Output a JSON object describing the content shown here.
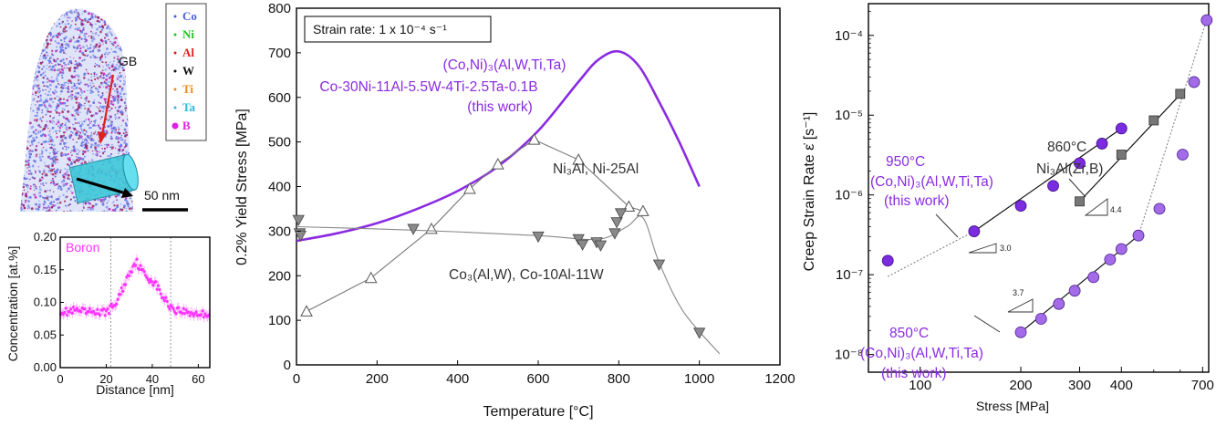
{
  "apt": {
    "legend": [
      {
        "label": "Co",
        "color": "#4a5fd8"
      },
      {
        "label": "Ni",
        "color": "#22c422"
      },
      {
        "label": "Al",
        "color": "#e02020"
      },
      {
        "label": "W",
        "color": "#111111"
      },
      {
        "label": "Ti",
        "color": "#f08a18"
      },
      {
        "label": "Ta",
        "color": "#2fb8e0"
      },
      {
        "label": "B",
        "color": "#e020e0"
      }
    ],
    "gb_label": "GB",
    "scale_label": "50 nm"
  },
  "chart_data": [
    {
      "type": "line",
      "xlabel": "Distance [nm]",
      "ylabel": "Concentration [at.%]",
      "xlim": [
        0,
        65
      ],
      "ylim": [
        0,
        0.2
      ],
      "xticks": [
        0,
        20,
        40,
        60
      ],
      "yticks": [
        0,
        0.05,
        0.1,
        0.15,
        0.2
      ],
      "ytick_labels": [
        "0.00",
        "0.05",
        "0.10",
        "0.15",
        "0.20"
      ],
      "vlines": [
        22,
        48
      ],
      "series": [
        {
          "name": "Boron",
          "color": "#ff33ff",
          "x": [
            0,
            3,
            6,
            9,
            12,
            15,
            18,
            21,
            24,
            26,
            28,
            30,
            32,
            33,
            34,
            36,
            38,
            40,
            42,
            44,
            46,
            48,
            50,
            53,
            56,
            59,
            62,
            65
          ],
          "y": [
            0.088,
            0.085,
            0.087,
            0.086,
            0.084,
            0.087,
            0.083,
            0.088,
            0.097,
            0.112,
            0.128,
            0.145,
            0.158,
            0.163,
            0.157,
            0.146,
            0.138,
            0.134,
            0.125,
            0.112,
            0.102,
            0.094,
            0.089,
            0.087,
            0.084,
            0.083,
            0.082,
            0.083
          ]
        }
      ]
    },
    {
      "type": "line",
      "xlabel": "Temperature [°C]",
      "ylabel": "0.2% Yield Stress [MPa]",
      "xlim": [
        0,
        1200
      ],
      "ylim": [
        0,
        800
      ],
      "xticks": [
        0,
        200,
        400,
        600,
        800,
        1000,
        1200
      ],
      "yticks": [
        0,
        100,
        200,
        300,
        400,
        500,
        600,
        700,
        800
      ],
      "annotation": "Strain rate: 1 x 10⁻⁴ s⁻¹",
      "series": [
        {
          "name": "(Co,Ni)₃(Al,W,Ti,Ta)",
          "color": "#8a2be2",
          "x": [
            0,
            100,
            200,
            300,
            400,
            500,
            600,
            700,
            750,
            800,
            850,
            900,
            950,
            1000
          ],
          "y": [
            278,
            295,
            318,
            350,
            390,
            445,
            525,
            635,
            685,
            703,
            670,
            590,
            500,
            400
          ]
        },
        {
          "name": "Ni₃Al, Ni-25Al",
          "color": "#666666",
          "marker": "triangle-up",
          "x": [
            25,
            185,
            335,
            430,
            500,
            590,
            700,
            825,
            860
          ],
          "y": [
            120,
            195,
            305,
            395,
            450,
            505,
            460,
            355,
            345
          ]
        },
        {
          "name": "Co₃(Al,W), Co-10Al-11W",
          "color": "#666666",
          "marker": "triangle-down",
          "x": [
            5,
            8,
            10,
            290,
            600,
            700,
            710,
            745,
            755,
            790,
            795,
            805,
            900,
            1000
          ],
          "y": [
            325,
            295,
            290,
            305,
            288,
            282,
            270,
            275,
            268,
            295,
            320,
            340,
            225,
            72
          ]
        }
      ],
      "labels": {
        "purple_1": "(Co,Ni)₃(Al,W,Ti,Ta)",
        "purple_2": "Co-30Ni-11Al-5.5W-4Ti-2.5Ta-0.1B",
        "purple_3": "(this work)",
        "ni3al": "Ni₃Al, Ni-25Al",
        "co3alw": "Co₃(Al,W), Co-10Al-11W"
      }
    },
    {
      "type": "scatter",
      "xscale": "log",
      "yscale": "log",
      "xlabel": "Stress [MPa]",
      "ylabel": "Creep Strain Rate ε̇ [s⁻¹]",
      "xlim": [
        70,
        730
      ],
      "ylim": [
        6e-09,
        0.00025
      ],
      "xticks": [
        100,
        200,
        300,
        400,
        700
      ],
      "yticks": [
        "10⁻⁴",
        "10⁻⁵",
        "10⁻⁶",
        "10⁻⁷",
        "10⁻⁸"
      ],
      "series": [
        {
          "name": "950°C (Co,Ni)₃(Al,W,Ti,Ta) (this work)",
          "color": "#7b2be0",
          "marker": "circle",
          "x": [
            80,
            145,
            200,
            250,
            300,
            350,
            400
          ],
          "y": [
            1.5e-07,
            3.5e-07,
            7.3e-07,
            1.3e-06,
            2.5e-06,
            4.4e-06,
            6.8e-06
          ]
        },
        {
          "name": "860°C Ni₃Al(Zr,B)",
          "color": "#777777",
          "marker": "square",
          "x": [
            300,
            400,
            500,
            600
          ],
          "y": [
            8.3e-07,
            3.2e-06,
            8.6e-06,
            1.85e-05
          ]
        },
        {
          "name": "850°C (Co,Ni)₃(Al,W,Ti,Ta) (this work)",
          "color": "#a46be8",
          "marker": "circle",
          "x": [
            200,
            230,
            260,
            290,
            330,
            370,
            400,
            450,
            520,
            610,
            660,
            720
          ],
          "y": [
            1.9e-08,
            2.8e-08,
            4.3e-08,
            6.3e-08,
            9.3e-08,
            1.55e-07,
            2.1e-07,
            3.1e-07,
            6.7e-07,
            3.2e-06,
            2.6e-05,
            0.000155
          ]
        }
      ],
      "slopes": [
        "3.0",
        "4.4",
        "3.7"
      ],
      "labels": {
        "t950": "950°C",
        "t950_phase": "(Co,Ni)₃(Al,W,Ti,Ta)",
        "t950_work": "(this work)",
        "t860": "860°C",
        "t860_phase": "Ni₃Al(Zr,B)",
        "t850": "850°C",
        "t850_phase": "(Co,Ni)₃(Al,W,Ti,Ta)",
        "t850_work": "(this work)"
      }
    }
  ]
}
